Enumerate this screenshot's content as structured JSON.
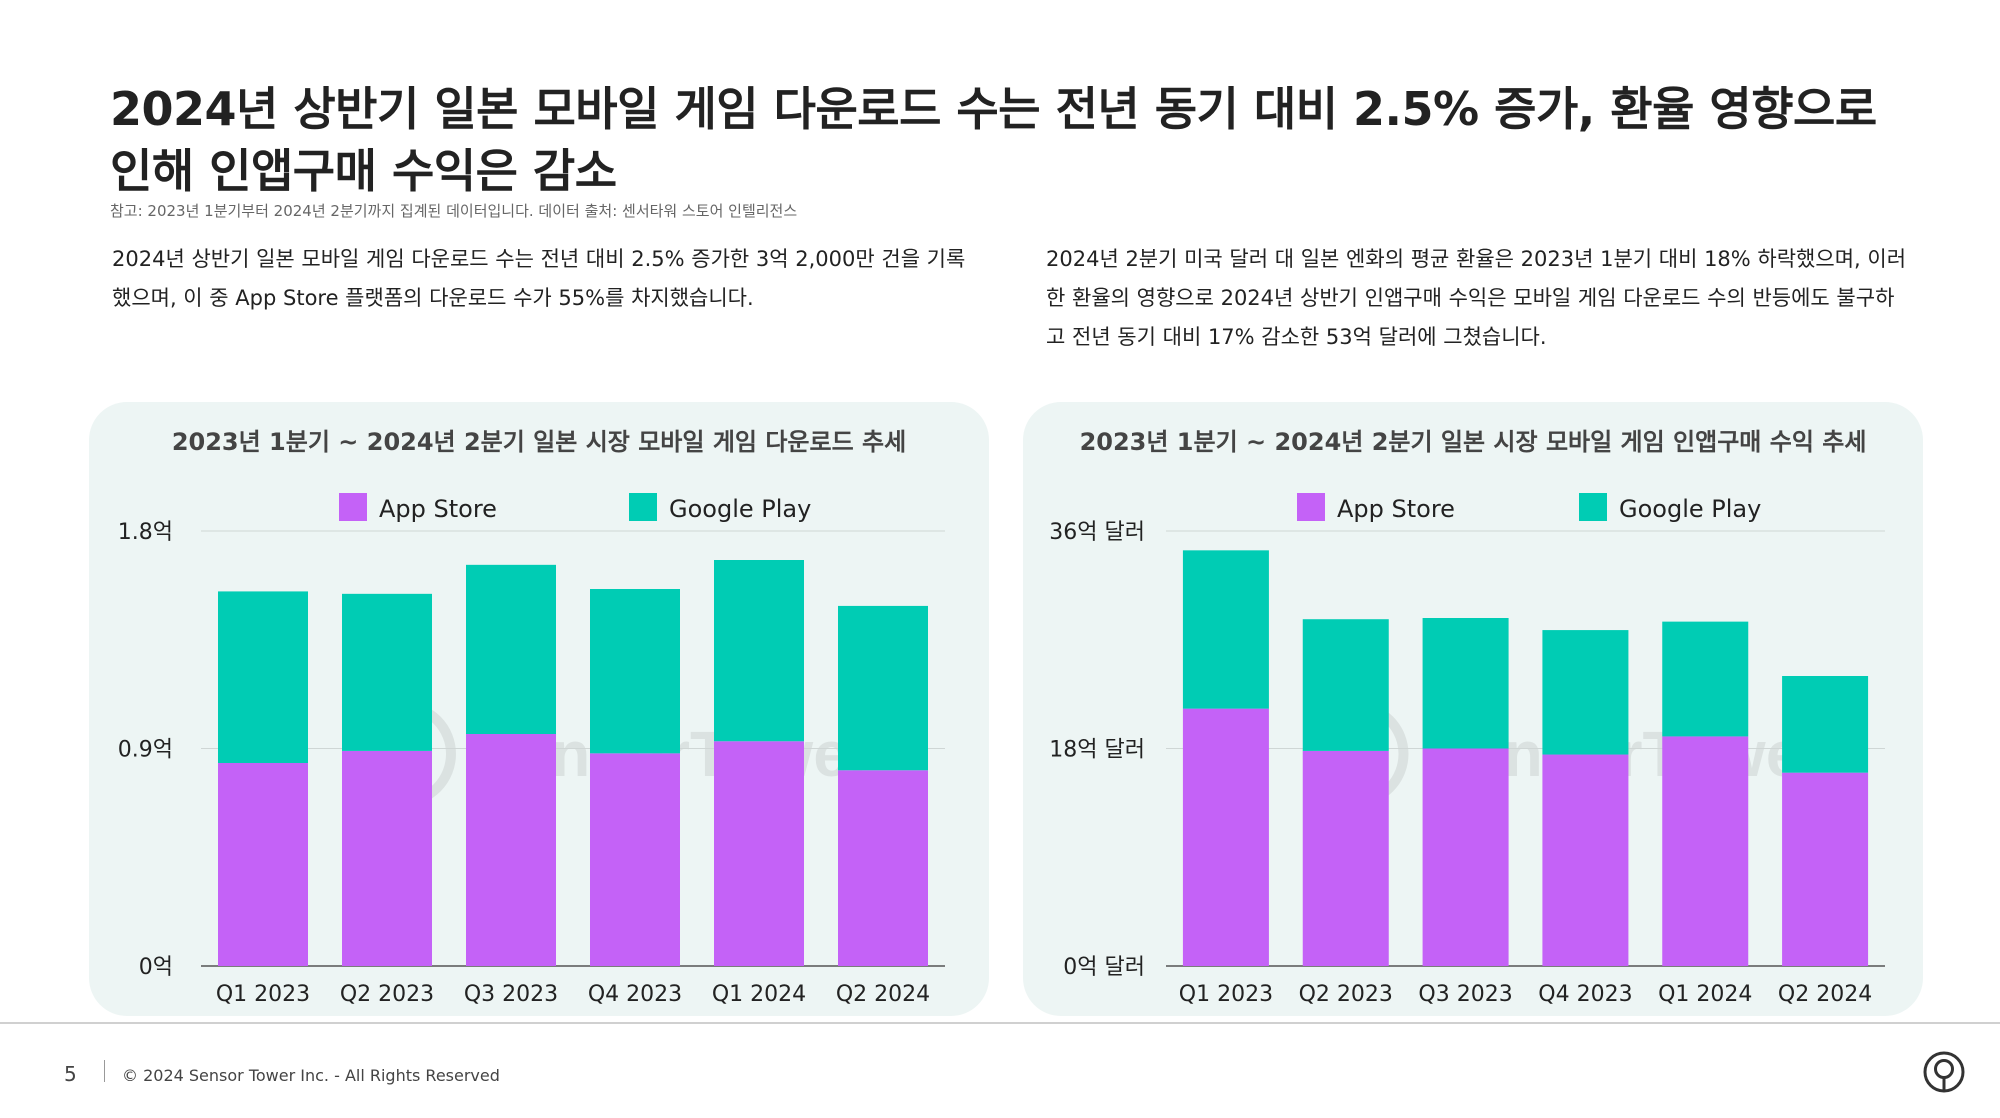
{
  "header": {
    "title": "2024년 상반기 일본 모바일 게임 다운로드 수는 전년 동기 대비 2.5% 증가, 환율 영향으로 인해 인앱구매 수익은 감소",
    "note": "참고: 2023년 1분기부터 2024년 2분기까지 집계된 데이터입니다. 데이터 출처: 센서타워 스토어 인텔리전스"
  },
  "paragraphs": {
    "left": "2024년 상반기 일본 모바일 게임 다운로드 수는 전년 대비 2.5% 증가한 3억 2,000만 건을 기록했으며, 이 중 App Store 플랫폼의 다운로드 수가 55%를 차지했습니다.",
    "right": "2024년 2분기 미국 달러 대 일본 엔화의 평균 환율은 2023년 1분기 대비 18% 하락했으며, 이러한 환율의 영향으로 2024년 상반기 인앱구매 수익은 모바일 게임 다운로드 수의 반등에도 불구하고 전년 동기 대비 17% 감소한 53억 달러에 그쳤습니다."
  },
  "colors": {
    "app_store": "#c462f7",
    "google_play": "#00ccb4",
    "panel_bg": "#edf5f4"
  },
  "watermark": "SensorTower",
  "chart_data": [
    {
      "type": "bar",
      "stacked": true,
      "title": "2023년 1분기 ~ 2024년 2분기 일본 시장 모바일 게임 다운로드 추세",
      "categories": [
        "Q1 2023",
        "Q2 2023",
        "Q3 2023",
        "Q4 2023",
        "Q1 2024",
        "Q2 2024"
      ],
      "series": [
        {
          "name": "App Store",
          "values": [
            0.84,
            0.89,
            0.96,
            0.88,
            0.93,
            0.81
          ]
        },
        {
          "name": "Google Play",
          "values": [
            0.71,
            0.65,
            0.7,
            0.68,
            0.75,
            0.68
          ]
        }
      ],
      "y_ticks": [
        0,
        0.9,
        1.8
      ],
      "y_tick_labels": [
        "0억",
        "0.9억",
        "1.8억"
      ],
      "ylim": [
        0,
        1.8
      ],
      "legend": "top",
      "grid": true
    },
    {
      "type": "bar",
      "stacked": true,
      "title": "2023년 1분기 ~ 2024년 2분기 일본 시장 모바일 게임 인앱구매 수익 추세",
      "categories": [
        "Q1 2023",
        "Q2 2023",
        "Q3 2023",
        "Q4 2023",
        "Q1 2024",
        "Q2 2024"
      ],
      "series": [
        {
          "name": "App Store",
          "values": [
            21.3,
            17.8,
            18.0,
            17.5,
            19.0,
            16.0
          ]
        },
        {
          "name": "Google Play",
          "values": [
            13.1,
            10.9,
            10.8,
            10.3,
            9.5,
            8.0
          ]
        }
      ],
      "y_ticks": [
        0,
        18,
        36
      ],
      "y_tick_labels": [
        "0억 달러",
        "18억 달러",
        "36억 달러"
      ],
      "ylim": [
        0,
        36
      ],
      "legend": "top",
      "grid": true
    }
  ],
  "footer": {
    "page_number": "5",
    "copyright": "© 2024 Sensor Tower Inc. - All Rights Reserved"
  }
}
